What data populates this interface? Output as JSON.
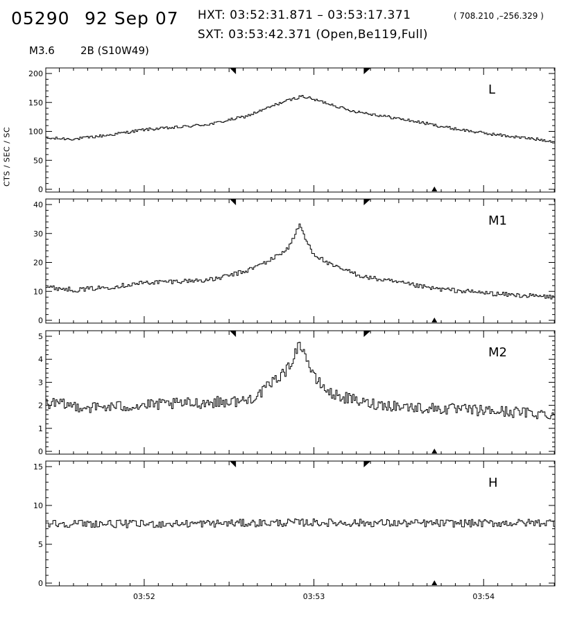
{
  "header": {
    "event": "05290",
    "date": "92 Sep 07",
    "hxt": "HXT: 03:52:31.871 – 03:53:17.371",
    "coords": "( 708.210 ,–256.329 )",
    "sxt": "SXT: 03:53:42.371 (Open,Be119,Full)",
    "flare_class": "M3.6",
    "optical": "2B (S10W49)"
  },
  "chart_data": {
    "type": "line",
    "ylabel": "CTS / SEC / SC",
    "x_tick_labels": [
      "03:52",
      "03:53",
      "03:54"
    ],
    "x_tick_times_min": [
      52,
      53,
      54
    ],
    "x_range_min": [
      51.42,
      54.42
    ],
    "markers": {
      "top_triangles_min": [
        52.52,
        53.31
      ],
      "bottom_triangle_min": 53.71
    },
    "panels": [
      {
        "name": "L",
        "yticks": [
          0,
          50,
          100,
          150,
          200
        ],
        "ylim": [
          0,
          200
        ],
        "anchors_t": [
          51.42,
          51.6,
          51.8,
          52.0,
          52.2,
          52.4,
          52.6,
          52.7,
          52.8,
          52.9,
          52.93,
          53.0,
          53.1,
          53.2,
          53.4,
          53.6,
          53.8,
          54.0,
          54.2,
          54.42
        ],
        "anchors_v": [
          88,
          87,
          94,
          103,
          107,
          113,
          126,
          137,
          149,
          158,
          161,
          155,
          147,
          137,
          127,
          117,
          106,
          97,
          90,
          83
        ],
        "noise": 2.5
      },
      {
        "name": "M1",
        "yticks": [
          0,
          10,
          20,
          30,
          40
        ],
        "ylim": [
          0,
          40
        ],
        "anchors_t": [
          51.42,
          51.6,
          51.8,
          52.0,
          52.2,
          52.4,
          52.6,
          52.75,
          52.85,
          52.9,
          52.92,
          52.95,
          53.0,
          53.1,
          53.3,
          53.5,
          53.7,
          53.9,
          54.1,
          54.42
        ],
        "anchors_v": [
          11.5,
          10.5,
          11.5,
          13,
          13.5,
          14,
          17,
          21,
          25,
          31,
          33,
          28,
          23,
          19,
          15,
          13,
          11,
          10,
          9,
          8
        ],
        "noise": 0.8
      },
      {
        "name": "M2",
        "yticks": [
          0,
          1,
          2,
          3,
          4,
          5
        ],
        "ylim": [
          0,
          5
        ],
        "anchors_t": [
          51.42,
          51.7,
          52.0,
          52.3,
          52.6,
          52.7,
          52.8,
          52.85,
          52.9,
          52.93,
          52.96,
          53.0,
          53.1,
          53.3,
          53.6,
          53.9,
          54.2,
          54.42
        ],
        "anchors_v": [
          2.1,
          1.9,
          2.0,
          2.1,
          2.2,
          2.6,
          3.3,
          3.6,
          4.5,
          4.6,
          4.0,
          3.2,
          2.5,
          2.1,
          1.9,
          1.8,
          1.7,
          1.6
        ],
        "noise": 0.25
      },
      {
        "name": "H",
        "yticks": [
          0,
          5,
          10,
          15
        ],
        "ylim": [
          0,
          15
        ],
        "anchors_t": [
          51.42,
          52.0,
          52.5,
          53.0,
          53.5,
          54.0,
          54.42
        ],
        "anchors_v": [
          7.7,
          7.6,
          7.7,
          7.8,
          7.7,
          7.7,
          7.8
        ],
        "noise": 0.5
      }
    ]
  }
}
